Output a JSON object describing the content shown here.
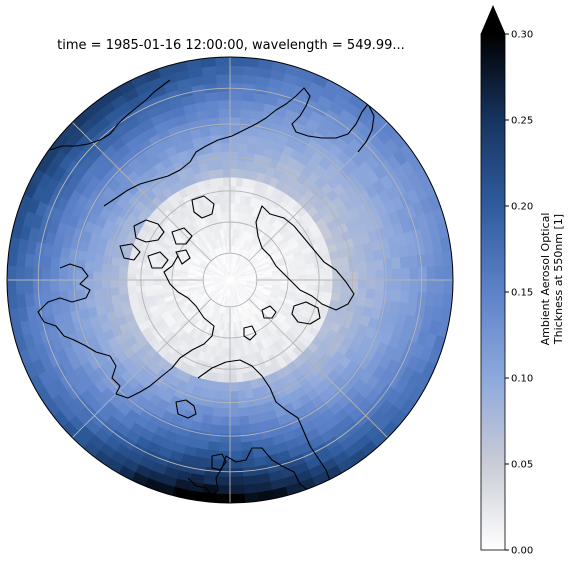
{
  "map": {
    "title": "time = 1985-01-16 12:00:00, wavelength = 549.99...",
    "projection": "north-polar-stereographic",
    "gridlines": true,
    "pole_marker": "*",
    "colors": {
      "ocean_coastline": "#000000",
      "gridline": "#b5b5b5",
      "border": "#000000"
    }
  },
  "colorbar": {
    "label_line1": "Ambient Aerosol Optical",
    "label_line2": "Thickness at 550nm [1]",
    "min": 0.0,
    "max": 0.3,
    "extend": "max",
    "ticks": [
      "0.00",
      "0.05",
      "0.10",
      "0.15",
      "0.20",
      "0.25",
      "0.30"
    ],
    "tick_values": [
      0.0,
      0.05,
      0.1,
      0.15,
      0.2,
      0.25,
      0.3
    ],
    "colormap_stops": [
      {
        "v": 0.0,
        "color": "#ffffff"
      },
      {
        "v": 0.05,
        "color": "#c9ccd6"
      },
      {
        "v": 0.1,
        "color": "#8ea8dc"
      },
      {
        "v": 0.15,
        "color": "#5d82c9"
      },
      {
        "v": 0.2,
        "color": "#2f5c9e"
      },
      {
        "v": 0.25,
        "color": "#173460"
      },
      {
        "v": 0.3,
        "color": "#000000"
      }
    ]
  }
}
